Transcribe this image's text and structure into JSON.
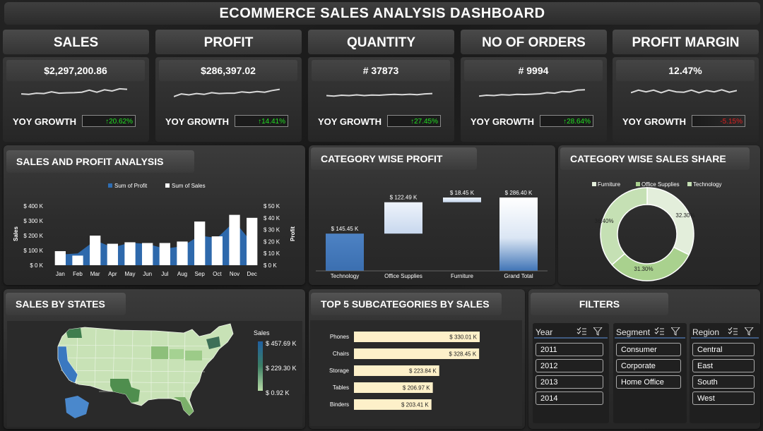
{
  "title": "ECOMMERCE SALES ANALYSIS DASHBOARD",
  "kpis": [
    {
      "label": "SALES",
      "value": "$2,297,200.86",
      "yoy_label": "YOY GROWTH",
      "yoy": "↑20.62%",
      "yoy_color": "#22e022",
      "spark": [
        0.42,
        0.45,
        0.38,
        0.4,
        0.3,
        0.38,
        0.36,
        0.35,
        0.32,
        0.2,
        0.32,
        0.18,
        0.25,
        0.12,
        0.15
      ]
    },
    {
      "label": "PROFIT",
      "value": "$286,397.02",
      "yoy_label": "YOY GROWTH",
      "yoy": "↑14.41%",
      "yoy_color": "#22e022",
      "spark": [
        0.58,
        0.42,
        0.48,
        0.4,
        0.45,
        0.35,
        0.4,
        0.38,
        0.38,
        0.3,
        0.34,
        0.28,
        0.32,
        0.22,
        0.15
      ]
    },
    {
      "label": "QUANTITY",
      "value": "# 37873",
      "yoy_label": "YOY GROWTH",
      "yoy": "↑27.45%",
      "yoy_color": "#22e022",
      "spark": [
        0.52,
        0.55,
        0.5,
        0.52,
        0.48,
        0.52,
        0.49,
        0.5,
        0.47,
        0.45,
        0.47,
        0.44,
        0.47,
        0.42,
        0.4
      ]
    },
    {
      "label": "NO OF ORDERS",
      "value": "# 9994",
      "yoy_label": "YOY GROWTH",
      "yoy": "↑28.64%",
      "yoy_color": "#22e022",
      "spark": [
        0.55,
        0.5,
        0.52,
        0.47,
        0.49,
        0.45,
        0.46,
        0.44,
        0.42,
        0.35,
        0.38,
        0.28,
        0.3,
        0.2,
        0.18
      ]
    },
    {
      "label": "PROFIT MARGIN",
      "value": "12.47%",
      "yoy_label": "YOY GROWTH",
      "yoy": "-5.15%",
      "yoy_color": "#e02020",
      "spark": [
        0.35,
        0.2,
        0.3,
        0.2,
        0.35,
        0.2,
        0.3,
        0.32,
        0.2,
        0.35,
        0.22,
        0.3,
        0.18,
        0.32,
        0.22
      ]
    }
  ],
  "sections": {
    "sales_profit": "SALES AND PROFIT ANALYSIS",
    "category_profit": "CATEGORY WISE PROFIT",
    "category_sales": "CATEGORY WISE SALES SHARE",
    "states": "SALES BY STATES",
    "subcategories": "TOP 5 SUBCATEGORIES BY SALES",
    "filters": "FILTERS"
  },
  "chart_data": [
    {
      "type": "bar",
      "title": "SALES AND PROFIT ANALYSIS",
      "categories": [
        "Jan",
        "Feb",
        "Mar",
        "Apr",
        "May",
        "Jun",
        "Jul",
        "Aug",
        "Sep",
        "Oct",
        "Nov",
        "Dec"
      ],
      "series": [
        {
          "name": "Sum of Profit",
          "type": "area",
          "axis": "right",
          "color": "#2e6db3",
          "values": [
            9,
            10,
            21,
            15,
            19,
            18,
            14,
            16,
            25,
            23,
            37,
            19
          ]
        },
        {
          "name": "Sum of Sales",
          "type": "bar",
          "axis": "left",
          "color": "#ffffff",
          "values": [
            95,
            65,
            200,
            145,
            155,
            150,
            150,
            160,
            295,
            195,
            340,
            320
          ]
        }
      ],
      "ylabel": "Sales",
      "y2label": "Profit",
      "ylim": [
        0,
        400
      ],
      "y2lim": [
        0,
        50
      ],
      "yticks": [
        "$ 0 K",
        "$ 100 K",
        "$ 200 K",
        "$ 300 K",
        "$ 400 K"
      ],
      "y2ticks": [
        "$ 0 K",
        "$ 10 K",
        "$ 20 K",
        "$ 30 K",
        "$ 40 K",
        "$ 50 K"
      ],
      "legend": "top"
    },
    {
      "type": "waterfall",
      "title": "CATEGORY WISE PROFIT",
      "categories": [
        "Technology",
        "Office Supplies",
        "Furniture",
        "Grand Total"
      ],
      "values": [
        145.45,
        122.49,
        18.45,
        286.4
      ],
      "labels": [
        "$ 145.45 K",
        "$ 122.49 K",
        "$ 18.45 K",
        "$ 286.40 K"
      ]
    },
    {
      "type": "pie",
      "title": "CATEGORY WISE SALES SHARE",
      "labels": [
        "Furniture",
        "Office Supplies",
        "Technology"
      ],
      "values": [
        32.3,
        31.3,
        36.4
      ],
      "value_labels": [
        "32.30%",
        "31.30%",
        "36.40%"
      ],
      "colors": [
        "#e3eedb",
        "#a9d18e",
        "#c5e0b4"
      ],
      "legend": "top"
    },
    {
      "type": "bar",
      "orientation": "horizontal",
      "title": "TOP 5 SUBCATEGORIES BY SALES",
      "categories": [
        "Phones",
        "Chairs",
        "Storage",
        "Tables",
        "Binders"
      ],
      "values": [
        330.01,
        328.45,
        223.84,
        206.97,
        203.41
      ],
      "labels": [
        "$ 330.01 K",
        "$ 328.45 K",
        "$ 223.84 K",
        "$ 206.97 K",
        "$ 203.41 K"
      ],
      "color": "#fdf0c9"
    }
  ],
  "map": {
    "legend_title": "Sales",
    "legend_ticks": [
      "$ 457.69 K",
      "$ 229.30 K",
      "$ 0.92 K"
    ]
  },
  "filters": {
    "slicers": [
      {
        "title": "Year",
        "items": [
          "2011",
          "2012",
          "2013",
          "2014"
        ]
      },
      {
        "title": "Segment",
        "items": [
          "Consumer",
          "Corporate",
          "Home Office"
        ]
      },
      {
        "title": "Region",
        "items": [
          "Central",
          "East",
          "South",
          "West"
        ]
      }
    ]
  },
  "icons": [
    "multi-select-icon",
    "filter-clear-icon",
    "arrow-up-icon"
  ]
}
